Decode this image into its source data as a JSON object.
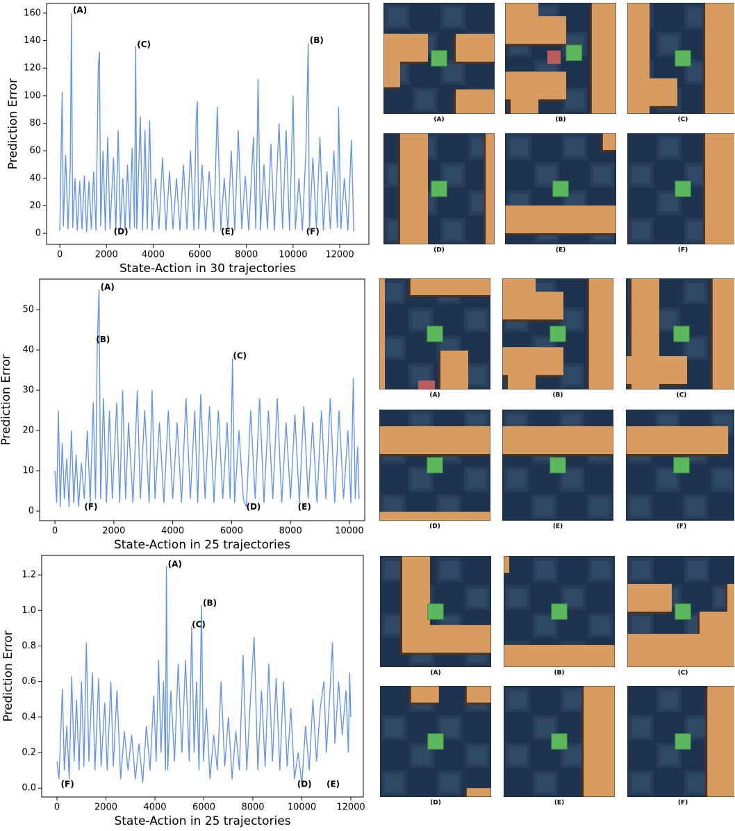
{
  "chart_data": [
    {
      "type": "line",
      "xlabel": "State-Action in 30 trajectories",
      "ylabel": "Prediction Error",
      "xlim": [
        -570,
        13250
      ],
      "ylim": [
        -8,
        167
      ],
      "xticks": [
        0,
        2000,
        4000,
        6000,
        8000,
        10000,
        12000
      ],
      "yticks": [
        0,
        20,
        40,
        60,
        80,
        100,
        120,
        140,
        160
      ],
      "x": [
        0,
        50,
        100,
        150,
        250,
        350,
        450,
        500,
        550,
        650,
        750,
        850,
        950,
        1050,
        1150,
        1250,
        1350,
        1450,
        1550,
        1650,
        1700,
        1750,
        1850,
        1950,
        2050,
        2150,
        2300,
        2400,
        2500,
        2600,
        2700,
        2800,
        2900,
        3000,
        3100,
        3200,
        3250,
        3300,
        3450,
        3550,
        3650,
        3750,
        3850,
        3950,
        4100,
        4250,
        4400,
        4550,
        4700,
        4850,
        5000,
        5150,
        5300,
        5450,
        5600,
        5750,
        5850,
        5900,
        5950,
        6100,
        6250,
        6400,
        6600,
        6750,
        6900,
        7050,
        7200,
        7350,
        7500,
        7650,
        7800,
        7950,
        8100,
        8300,
        8400,
        8500,
        8600,
        8750,
        8900,
        9050,
        9200,
        9400,
        9550,
        9700,
        9850,
        10000,
        10100,
        10250,
        10400,
        10550,
        10650,
        10700,
        10850,
        11000,
        11150,
        11300,
        11450,
        11600,
        11750,
        11900,
        11950,
        12050,
        12200,
        12350,
        12500,
        12600,
        12650
      ],
      "series": [
        {
          "color": "#6495ed",
          "values": [
            2,
            55,
            103,
            5,
            57,
            3,
            50,
            160,
            4,
            40,
            2,
            38,
            3,
            42,
            1,
            38,
            3,
            45,
            2,
            121,
            132,
            5,
            60,
            2,
            70,
            3,
            55,
            2,
            75,
            3,
            40,
            2,
            50,
            3,
            62,
            4,
            136,
            3,
            85,
            2,
            75,
            3,
            82,
            2,
            40,
            3,
            55,
            2,
            45,
            3,
            40,
            2,
            50,
            3,
            60,
            2,
            85,
            96,
            3,
            50,
            2,
            45,
            1,
            92,
            2,
            40,
            3,
            60,
            2,
            75,
            3,
            42,
            2,
            70,
            3,
            112,
            2,
            50,
            3,
            65,
            2,
            80,
            3,
            75,
            2,
            100,
            3,
            40,
            2,
            60,
            138,
            2,
            55,
            3,
            70,
            2,
            45,
            3,
            60,
            4,
            92,
            3,
            40,
            2,
            68,
            2,
            2
          ]
        }
      ],
      "annotations": [
        {
          "text": "(A)",
          "x": 500,
          "y": 162
        },
        {
          "text": "(C)",
          "x": 3250,
          "y": 137
        },
        {
          "text": "(B)",
          "x": 10650,
          "y": 140
        },
        {
          "text": "(D)",
          "x": 2250,
          "y": 1
        },
        {
          "text": "(E)",
          "x": 6850,
          "y": 1
        },
        {
          "text": "(F)",
          "x": 10500,
          "y": 1
        }
      ]
    },
    {
      "type": "line",
      "xlabel": "State-Action in 25 trajectories",
      "ylabel": "Prediction Error",
      "xlim": [
        -520,
        10520
      ],
      "ylim": [
        -2.4,
        57.6
      ],
      "xticks": [
        0,
        2000,
        4000,
        6000,
        8000,
        10000
      ],
      "yticks": [
        0,
        10,
        20,
        30,
        40,
        50
      ],
      "x": [
        0,
        60,
        120,
        180,
        250,
        320,
        400,
        480,
        560,
        640,
        720,
        800,
        900,
        1000,
        1100,
        1200,
        1300,
        1380,
        1440,
        1500,
        1550,
        1650,
        1750,
        1850,
        1950,
        2100,
        2200,
        2300,
        2400,
        2500,
        2650,
        2800,
        2900,
        3050,
        3200,
        3300,
        3400,
        3550,
        3700,
        3850,
        4000,
        4150,
        4300,
        4450,
        4600,
        4750,
        4850,
        4950,
        5100,
        5250,
        5400,
        5550,
        5700,
        5850,
        5950,
        6030,
        6100,
        6250,
        6400,
        6500,
        6650,
        6800,
        6950,
        7100,
        7250,
        7400,
        7550,
        7700,
        7850,
        8000,
        8150,
        8300,
        8450,
        8600,
        8750,
        8900,
        9050,
        9200,
        9350,
        9500,
        9650,
        9800,
        9950,
        10050,
        10130,
        10200,
        10280,
        10330
      ],
      "series": [
        {
          "color": "#6495ed",
          "values": [
            10,
            2,
            25,
            1,
            17,
            3,
            13,
            1,
            20,
            2,
            14,
            1,
            12,
            3,
            20,
            2,
            27,
            3,
            42,
            55,
            3,
            28,
            2,
            25,
            3,
            27,
            2,
            30,
            3,
            22,
            2,
            30,
            3,
            25,
            2,
            30,
            3,
            22,
            2,
            25,
            3,
            22,
            2,
            28,
            3,
            25,
            2,
            29,
            3,
            26,
            2,
            25,
            3,
            22,
            3,
            38,
            2,
            20,
            3,
            1,
            25,
            3,
            28,
            2,
            25,
            3,
            28,
            2,
            22,
            3,
            24,
            2,
            26,
            3,
            22,
            2,
            25,
            3,
            28,
            2,
            25,
            3,
            20,
            2,
            33,
            3,
            16,
            3
          ]
        }
      ],
      "annotations": [
        {
          "text": "(A)",
          "x": 1500,
          "y": 55.5
        },
        {
          "text": "(B)",
          "x": 1350,
          "y": 42.5
        },
        {
          "text": "(C)",
          "x": 6000,
          "y": 38.5
        },
        {
          "text": "(F)",
          "x": 950,
          "y": 1
        },
        {
          "text": "(D)",
          "x": 6450,
          "y": 1
        },
        {
          "text": "(E)",
          "x": 8200,
          "y": 1
        }
      ]
    },
    {
      "type": "line",
      "xlabel": "State-Action in 25 trajectories",
      "ylabel": "Prediction Error",
      "xlim": [
        -625,
        12510
      ],
      "ylim": [
        -0.05,
        1.31
      ],
      "xticks": [
        0,
        2000,
        4000,
        6000,
        8000,
        10000,
        12000
      ],
      "yticks": [
        {
          "value": 0,
          "label": "0.0"
        },
        0.2,
        0.4,
        0.6,
        0.8,
        {
          "value": 1,
          "label": "1.0"
        },
        1.2
      ],
      "x": [
        0,
        80,
        150,
        220,
        300,
        400,
        500,
        600,
        700,
        800,
        900,
        1000,
        1100,
        1200,
        1300,
        1450,
        1550,
        1700,
        1800,
        1950,
        2050,
        2200,
        2300,
        2450,
        2600,
        2750,
        2900,
        3050,
        3200,
        3350,
        3500,
        3650,
        3800,
        3950,
        4050,
        4150,
        4250,
        4350,
        4430,
        4470,
        4520,
        4650,
        4800,
        4950,
        5100,
        5250,
        5400,
        5500,
        5600,
        5700,
        5800,
        5900,
        5980,
        6100,
        6250,
        6400,
        6550,
        6700,
        6850,
        7000,
        7150,
        7300,
        7450,
        7600,
        7750,
        7900,
        8050,
        8200,
        8350,
        8500,
        8650,
        8800,
        8950,
        9100,
        9250,
        9400,
        9550,
        9700,
        9850,
        10000,
        10150,
        10300,
        10450,
        10600,
        10750,
        10900,
        11000,
        11150,
        11250,
        11350,
        11500,
        11650,
        11800,
        11900,
        11950,
        12000
      ],
      "series": [
        {
          "color": "#6495ed",
          "values": [
            0.15,
            0.05,
            0.3,
            0.56,
            0.1,
            0.35,
            0.05,
            0.63,
            0.15,
            0.5,
            0.1,
            0.6,
            0.12,
            0.82,
            0.15,
            0.65,
            0.1,
            0.62,
            0.12,
            0.48,
            0.1,
            0.6,
            0.12,
            0.55,
            0.05,
            0.32,
            0.1,
            0.3,
            0.05,
            0.25,
            0.03,
            0.35,
            0.1,
            0.52,
            0.15,
            0.72,
            0.2,
            0.6,
            0.1,
            1.25,
            0.1,
            0.55,
            0.15,
            0.7,
            0.2,
            0.72,
            0.15,
            0.91,
            0.2,
            0.6,
            0.1,
            1.03,
            0.15,
            0.45,
            0.05,
            0.3,
            0.1,
            0.6,
            0.12,
            0.4,
            0.05,
            0.32,
            0.1,
            0.75,
            0.1,
            0.5,
            0.85,
            0.1,
            0.55,
            0.12,
            0.7,
            0.15,
            0.62,
            0.1,
            0.6,
            0.12,
            0.45,
            0.05,
            0.2,
            0.02,
            0.35,
            0.1,
            0.5,
            0.15,
            0.45,
            0.6,
            0.2,
            0.55,
            0.82,
            0.25,
            0.6,
            0.3,
            0.55,
            0.2,
            0.65,
            0.4
          ]
        }
      ],
      "annotations": [
        {
          "text": "(A)",
          "x": 4470,
          "y": 1.26
        },
        {
          "text": "(B)",
          "x": 5900,
          "y": 1.04
        },
        {
          "text": "(C)",
          "x": 5450,
          "y": 0.92
        },
        {
          "text": "(F)",
          "x": 100,
          "y": 0.02
        },
        {
          "text": "(D)",
          "x": 9750,
          "y": 0.02
        },
        {
          "text": "(E)",
          "x": 10950,
          "y": 0.02
        }
      ]
    }
  ],
  "thumbnails": [
    [
      "(A)",
      "(B)",
      "(C)",
      "(D)",
      "(E)",
      "(F)"
    ],
    [
      "(A)",
      "(B)",
      "(C)",
      "(D)",
      "(E)",
      "(F)"
    ],
    [
      "(A)",
      "(B)",
      "(C)",
      "(D)",
      "(E)",
      "(F)"
    ]
  ]
}
